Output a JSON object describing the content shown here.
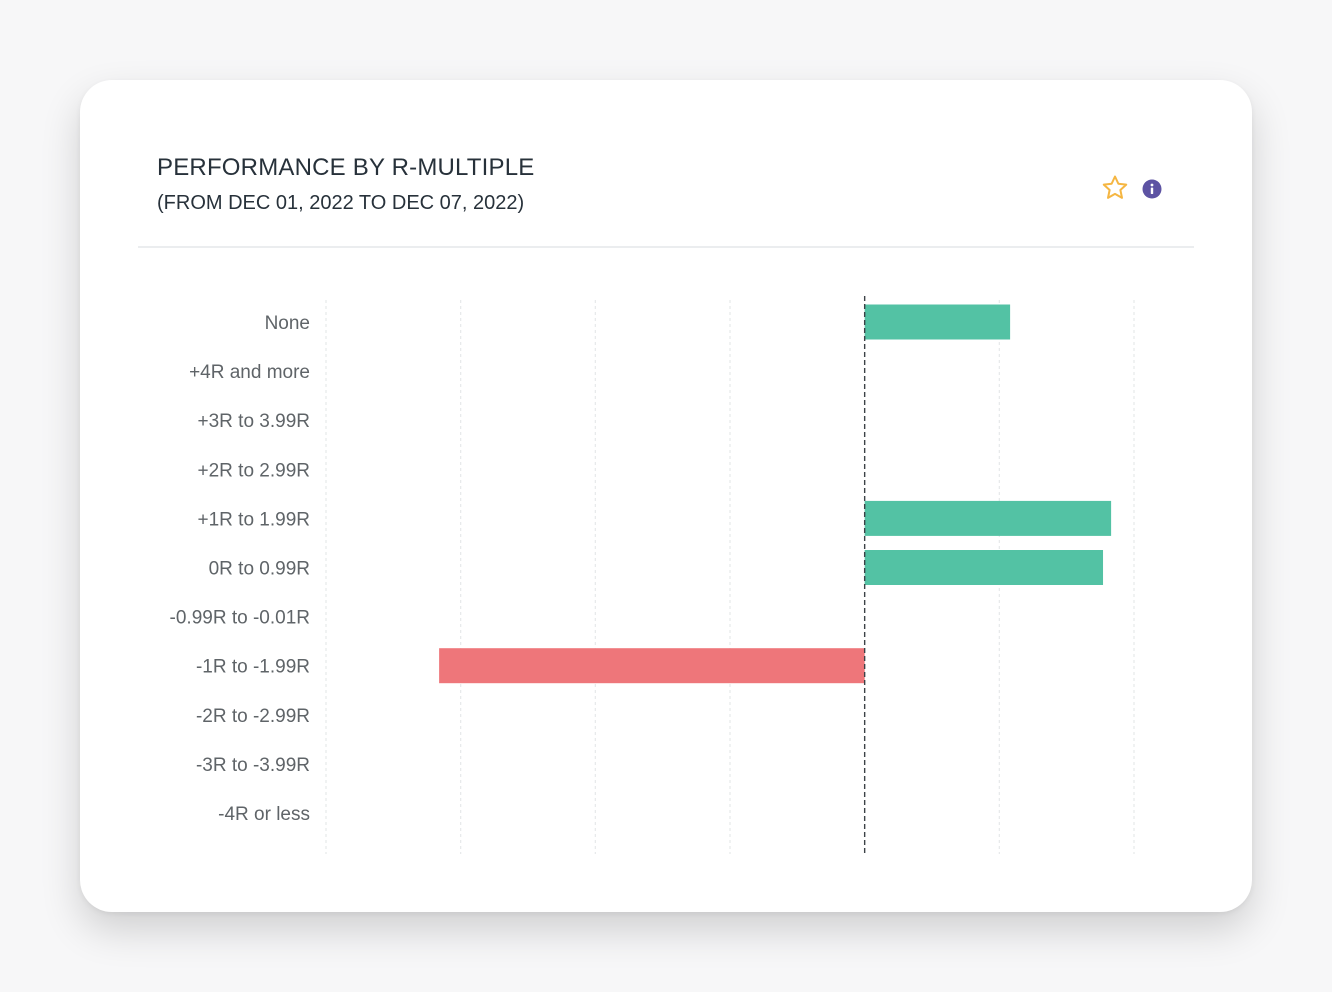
{
  "header": {
    "title": "PERFORMANCE BY R-MULTIPLE",
    "subtitle": "(FROM DEC 01, 2022 TO DEC 07, 2022)"
  },
  "icons": {
    "favorite": "star-icon",
    "info": "info-icon"
  },
  "colors": {
    "positive": "#53c2a4",
    "negative": "#ee767a",
    "star": "#f5b642",
    "info": "#5d53a3"
  },
  "chart_data": {
    "type": "bar",
    "orientation": "horizontal",
    "categories": [
      "None",
      "+4R and more",
      "+3R to 3.99R",
      "+2R to 2.99R",
      "+1R to 1.99R",
      "0R to 0.99R",
      "-0.99R to -0.01R",
      "-1R to -1.99R",
      "-2R to -2.99R",
      "-3R to -3.99R",
      "-4R or less"
    ],
    "values": [
      1.08,
      0,
      0,
      0,
      1.83,
      1.77,
      0,
      -3.16,
      0,
      0,
      0
    ],
    "xlim": [
      -4,
      2
    ],
    "zero_line": "dashed",
    "grid": true,
    "legend": "none",
    "title": "PERFORMANCE BY R-MULTIPLE",
    "xlabel": "",
    "ylabel": ""
  }
}
